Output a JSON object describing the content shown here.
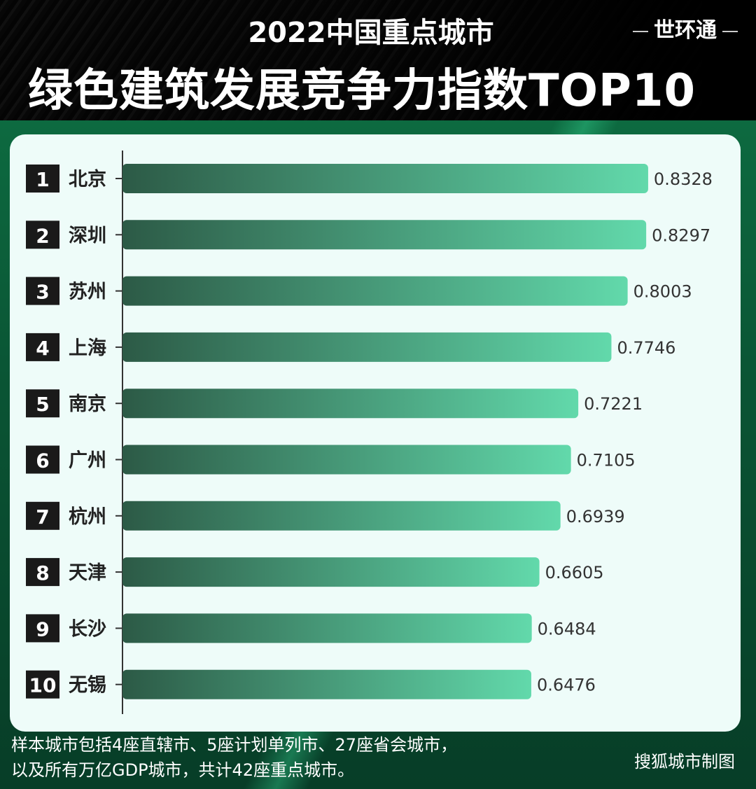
{
  "header": {
    "title_line1": "2022中国重点城市",
    "title_line2": "绿色建筑发展竞争力指数TOP10",
    "brand": "世环通"
  },
  "footer": {
    "note": "样本城市包括4座直辖市、5座计划单列市、27座省会城市，以及所有万亿GDP城市，共计42座重点城市。",
    "credit": "搜狐城市制图"
  },
  "colors": {
    "bar_start": "#2c5a46",
    "bar_end": "#62d9ab",
    "rank_badge": "#1a1a1a",
    "card": "#eefcf9",
    "background": "#0a5434"
  },
  "chart_data": {
    "type": "bar",
    "orientation": "horizontal",
    "title": "",
    "categories": [
      "北京",
      "深圳",
      "苏州",
      "上海",
      "南京",
      "广州",
      "杭州",
      "天津",
      "长沙",
      "无锡"
    ],
    "ranks": [
      "1",
      "2",
      "3",
      "4",
      "5",
      "6",
      "7",
      "8",
      "9",
      "10"
    ],
    "values": [
      0.8328,
      0.8297,
      0.8003,
      0.7746,
      0.7221,
      0.7105,
      0.6939,
      0.6605,
      0.6484,
      0.6476
    ],
    "labels": [
      "0.8328",
      "0.8297",
      "0.8003",
      "0.7746",
      "0.7221",
      "0.7105",
      "0.6939",
      "0.6605",
      "0.6484",
      "0.6476"
    ],
    "xlim": [
      0,
      1
    ],
    "grid": false,
    "legend": "none"
  }
}
